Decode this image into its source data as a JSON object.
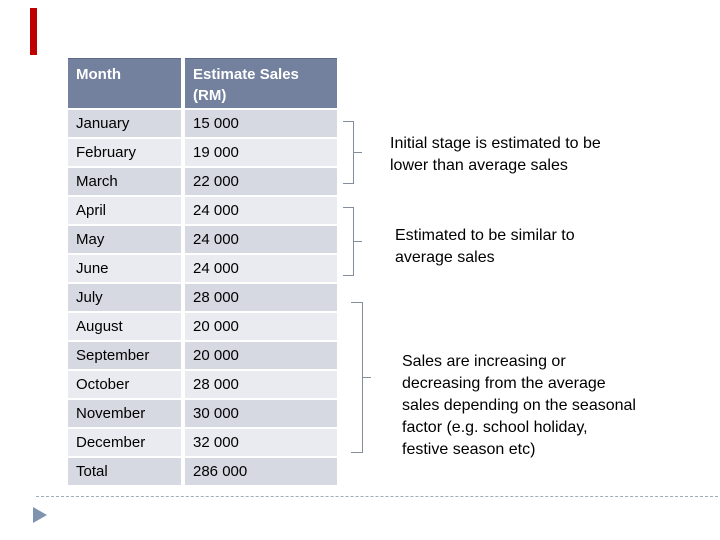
{
  "slide": {
    "accent_bar_color": "#c00000",
    "bullet_color": "#7e93ae",
    "bracket_color": "#848d99",
    "header_bg": "#73809e",
    "row_bg_dark": "#d6d9e2",
    "row_bg_light": "#e9ebf1"
  },
  "table": {
    "header": {
      "col1": "Month",
      "col2": "Estimate Sales (RM)"
    },
    "rows": [
      {
        "month": "January",
        "sales": "15 000"
      },
      {
        "month": "February",
        "sales": "19 000"
      },
      {
        "month": "March",
        "sales": "22 000"
      },
      {
        "month": "April",
        "sales": "24 000"
      },
      {
        "month": "May",
        "sales": "24 000"
      },
      {
        "month": "June",
        "sales": "24 000"
      },
      {
        "month": "July",
        "sales": "28 000"
      },
      {
        "month": "August",
        "sales": "20 000"
      },
      {
        "month": "September",
        "sales": "20 000"
      },
      {
        "month": "October",
        "sales": "28 000"
      },
      {
        "month": "November",
        "sales": "30 000"
      },
      {
        "month": "December",
        "sales": "32 000"
      },
      {
        "month": "Total",
        "sales": "286 000"
      }
    ]
  },
  "annotations": [
    {
      "text": "Initial stage is estimated to be\nlower than average sales"
    },
    {
      "text": "Estimated to be similar to\naverage sales"
    },
    {
      "text": "Sales are increasing or\ndecreasing from the average\nsales depending on the seasonal\nfactor (e.g. school holiday,\nfestive season etc)"
    }
  ],
  "chart_data": {
    "type": "table",
    "title": "Estimate Sales (RM) by Month",
    "columns": [
      "Month",
      "Estimate Sales (RM)"
    ],
    "categories": [
      "January",
      "February",
      "March",
      "April",
      "May",
      "June",
      "July",
      "August",
      "September",
      "October",
      "November",
      "December"
    ],
    "values": [
      15000,
      19000,
      22000,
      24000,
      24000,
      24000,
      28000,
      20000,
      20000,
      28000,
      30000,
      32000
    ],
    "total": 286000
  }
}
